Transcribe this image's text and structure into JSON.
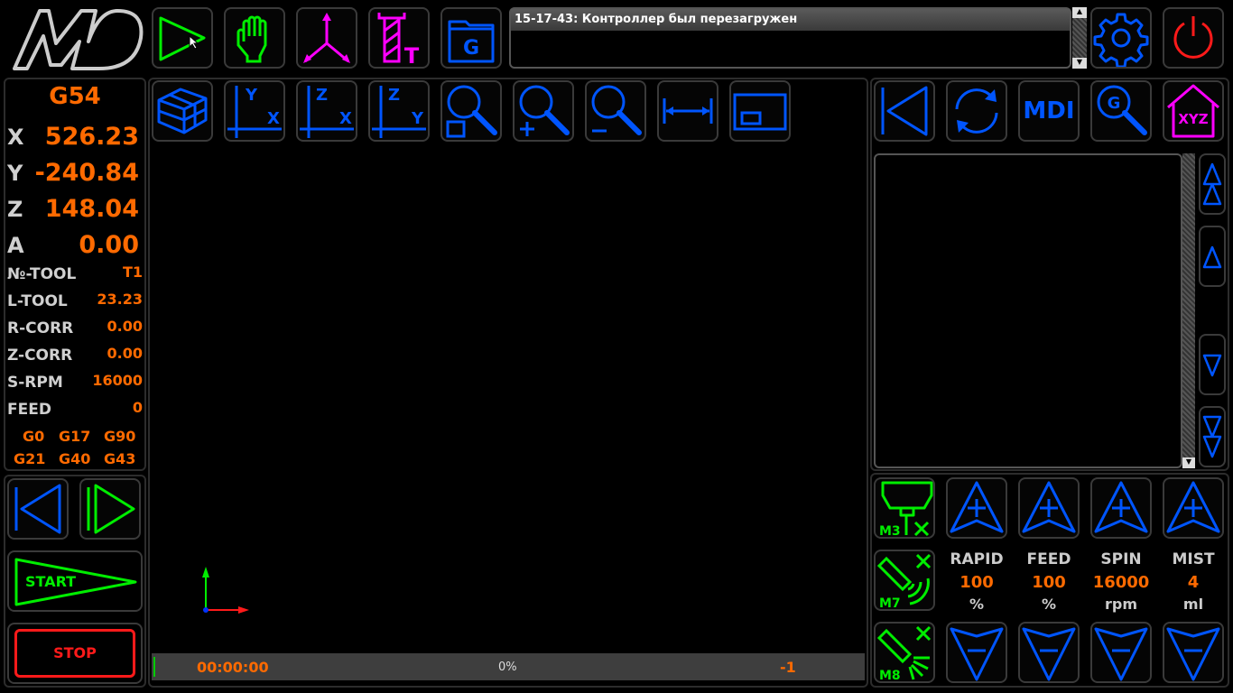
{
  "logo": "MD",
  "toolbar_top": [
    {
      "name": "run-icon",
      "color": "#00ee00"
    },
    {
      "name": "hand-icon",
      "color": "#00ee00"
    },
    {
      "name": "axes-icon",
      "color": "#ff00ff"
    },
    {
      "name": "tool-icon",
      "color": "#ff00ff",
      "label": "T"
    },
    {
      "name": "gcode-folder-icon",
      "color": "#0055ff",
      "label": "G"
    }
  ],
  "message": {
    "text": "15-17-43: Контроллер был перезагружен"
  },
  "settings_icon": "gear-icon",
  "power_icon": "power-icon",
  "view_toolbar": [
    {
      "name": "view-3d-icon"
    },
    {
      "name": "view-xy-icon",
      "v": "Y",
      "h": "X"
    },
    {
      "name": "view-zx-icon",
      "v": "Z",
      "h": "X"
    },
    {
      "name": "view-zy-icon",
      "v": "Z",
      "h": "Y"
    },
    {
      "name": "zoom-fit-icon"
    },
    {
      "name": "zoom-in-icon"
    },
    {
      "name": "zoom-out-icon"
    },
    {
      "name": "measure-icon"
    },
    {
      "name": "frame-icon"
    }
  ],
  "dro": {
    "wcs": "G54",
    "axes": [
      {
        "name": "X",
        "value": "526.23"
      },
      {
        "name": "Y",
        "value": "-240.84"
      },
      {
        "name": "Z",
        "value": "148.04"
      },
      {
        "name": "A",
        "value": "0.00"
      }
    ],
    "params": [
      {
        "name": "№-TOOL",
        "value": "T1"
      },
      {
        "name": "L-TOOL",
        "value": "23.23"
      },
      {
        "name": "R-CORR",
        "value": "0.00"
      },
      {
        "name": "Z-CORR",
        "value": "0.00"
      },
      {
        "name": "S-RPM",
        "value": "16000"
      },
      {
        "name": "FEED",
        "value": "0"
      }
    ],
    "gcodes": [
      "G0",
      "G17",
      "G90",
      "G21",
      "G40",
      "G43"
    ]
  },
  "program": {
    "start_label": "START",
    "stop_label": "STOP"
  },
  "status": {
    "time": "00:00:00",
    "progress": "0%",
    "progress_value": 0,
    "line": "-1"
  },
  "right_toolbar": {
    "mdi_label": "MDI",
    "g_label": "G",
    "home_label": "XYZ"
  },
  "coolant": [
    {
      "label": "M3"
    },
    {
      "label": "M7"
    },
    {
      "label": "M8"
    }
  ],
  "overrides": [
    {
      "name": "RAPID",
      "value": "100",
      "unit": "%"
    },
    {
      "name": "FEED",
      "value": "100",
      "unit": "%"
    },
    {
      "name": "SPIN",
      "value": "16000",
      "unit": "rpm"
    },
    {
      "name": "MIST",
      "value": "4",
      "unit": "ml"
    }
  ],
  "colors": {
    "accent": "#0055ff",
    "value": "#ff6a00",
    "ok": "#00ee00",
    "stop": "#ff1a1a",
    "tool": "#ff00ff"
  }
}
